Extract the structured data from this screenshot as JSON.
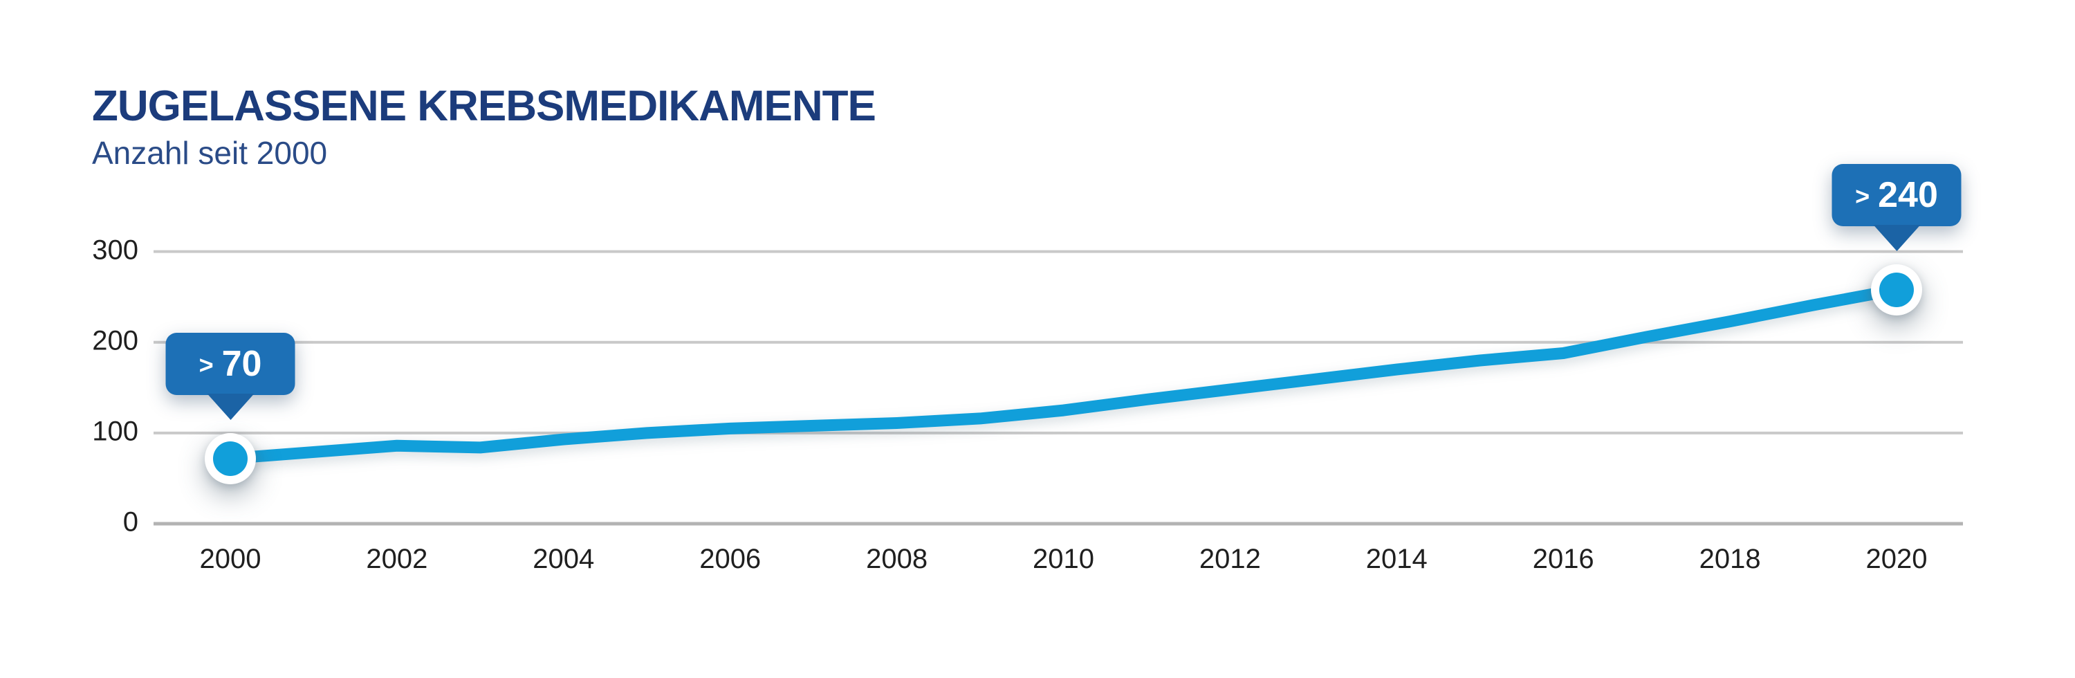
{
  "header": {
    "title": "ZUGELASSENE KREBSMEDIKAMENTE",
    "subtitle": "Anzahl seit 2000"
  },
  "chart_data": {
    "type": "line",
    "title": "ZUGELASSENE KREBSMEDIKAMENTE",
    "subtitle": "Anzahl seit 2000",
    "x": [
      2000,
      2001,
      2002,
      2003,
      2004,
      2005,
      2006,
      2007,
      2008,
      2009,
      2010,
      2011,
      2012,
      2013,
      2014,
      2015,
      2016,
      2017,
      2018,
      2019,
      2020
    ],
    "series": [
      {
        "name": "Zugelassene Krebsmedikamente",
        "values": [
          72,
          79,
          86,
          84,
          93,
          100,
          105,
          108,
          111,
          116,
          125,
          137,
          148,
          159,
          170,
          180,
          188,
          206,
          223,
          241,
          258
        ]
      }
    ],
    "xticks": [
      2000,
      2002,
      2004,
      2006,
      2008,
      2010,
      2012,
      2014,
      2016,
      2018,
      2020
    ],
    "yticks": [
      0,
      100,
      200,
      300
    ],
    "ylim": [
      0,
      300
    ],
    "xlabel": "",
    "ylabel": "",
    "grid": "horizontal",
    "legend": "none",
    "annotations": [
      {
        "x": 2000,
        "symbol": ">",
        "number": "70",
        "label": "> 70"
      },
      {
        "x": 2020,
        "symbol": ">",
        "number": "240",
        "label": "> 240"
      }
    ],
    "colors": {
      "line": "#119fda",
      "point": "#119fda",
      "point_ring": "#ffffff",
      "badge": "#1d70b6",
      "badge_tail": "#1b63a5",
      "badge_text": "#ffffff",
      "title": "#1c3c7c",
      "subtitle": "#2a4b87",
      "grid": "#c9c9c9",
      "zero_line": "#b3b3b3",
      "tick": "#1f1f1f",
      "background": "#ffffff"
    }
  }
}
